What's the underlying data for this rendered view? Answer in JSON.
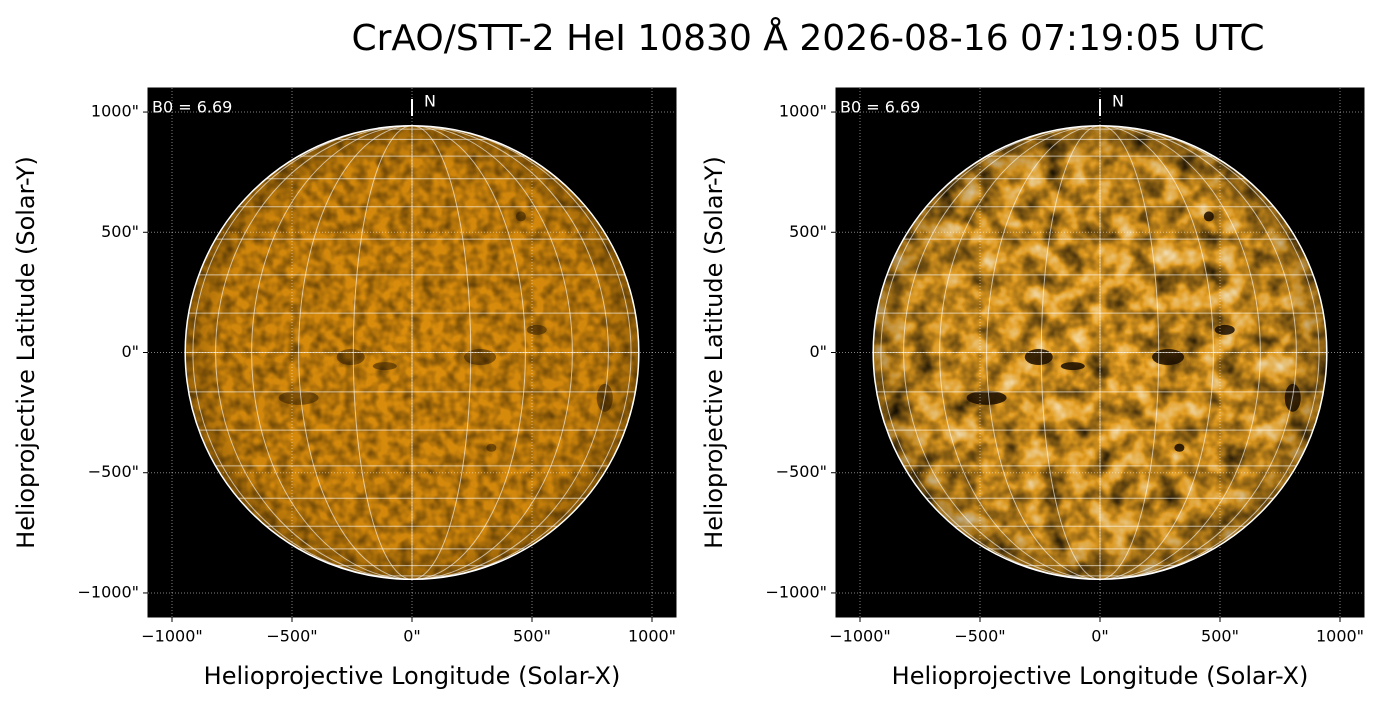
{
  "title": "CrAO/STT-2 HeI 10830 Å 2026-08-16 07:19:05 UTC",
  "chart_data": [
    {
      "type": "image",
      "b0_label": "B0 = 6.69",
      "north_label": "N",
      "xlabel": "Helioprojective Longitude (Solar-X)",
      "ylabel": "Helioprojective Latitude (Solar-Y)",
      "xlim": [
        -1100,
        1100
      ],
      "ylim": [
        -1100,
        1100
      ],
      "xticks": [
        {
          "value": -1000,
          "label": "−1000\""
        },
        {
          "value": -500,
          "label": "−500\""
        },
        {
          "value": 0,
          "label": "0\""
        },
        {
          "value": 500,
          "label": "500\""
        },
        {
          "value": 1000,
          "label": "1000\""
        }
      ],
      "yticks": [
        {
          "value": -1000,
          "label": "−1000\""
        },
        {
          "value": -500,
          "label": "−500\""
        },
        {
          "value": 0,
          "label": "0\""
        },
        {
          "value": 500,
          "label": "500\""
        },
        {
          "value": 1000,
          "label": "1000\""
        }
      ],
      "grid": true,
      "solar_radius": 945,
      "color": "#dc8e0c"
    },
    {
      "type": "image",
      "b0_label": "B0 = 6.69",
      "north_label": "N",
      "xlabel": "Helioprojective Longitude (Solar-X)",
      "ylabel": "Helioprojective Latitude (Solar-Y)",
      "xlim": [
        -1100,
        1100
      ],
      "ylim": [
        -1100,
        1100
      ],
      "xticks": [
        {
          "value": -1000,
          "label": "−1000\""
        },
        {
          "value": -500,
          "label": "−500\""
        },
        {
          "value": 0,
          "label": "0\""
        },
        {
          "value": 500,
          "label": "500\""
        },
        {
          "value": 1000,
          "label": "1000\""
        }
      ],
      "yticks": [
        {
          "value": -1000,
          "label": "−1000\""
        },
        {
          "value": -500,
          "label": "−500\""
        },
        {
          "value": 0,
          "label": "0\""
        },
        {
          "value": 500,
          "label": "500\""
        },
        {
          "value": 1000,
          "label": "1000\""
        }
      ],
      "grid": true,
      "solar_radius": 945,
      "color": "#e8a020"
    }
  ]
}
